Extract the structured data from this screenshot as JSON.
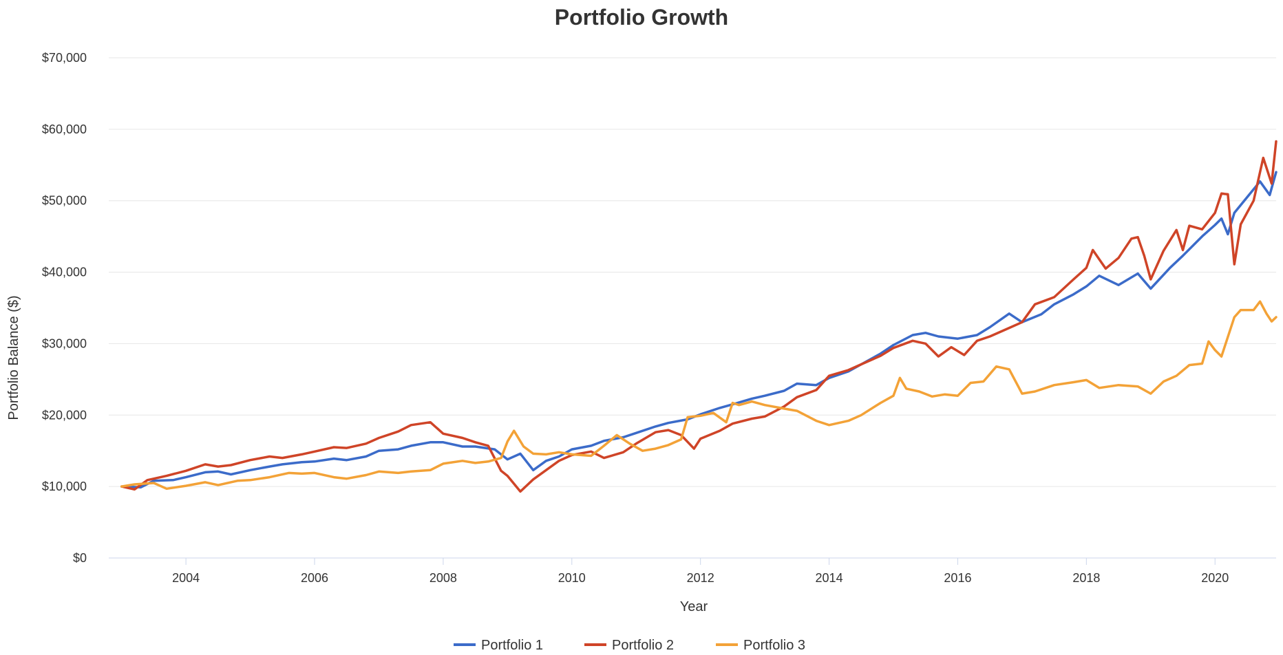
{
  "chart_data": {
    "type": "line",
    "title": "Portfolio Growth",
    "xlabel": "Year",
    "ylabel": "Portfolio Balance ($)",
    "xlim": [
      2002.8,
      2020.95
    ],
    "ylim": [
      0,
      70000
    ],
    "x_ticks": [
      2004,
      2006,
      2008,
      2010,
      2012,
      2014,
      2016,
      2018,
      2020
    ],
    "x_tick_labels": [
      "2004",
      "2006",
      "2008",
      "2010",
      "2012",
      "2014",
      "2016",
      "2018",
      "2020"
    ],
    "y_ticks": [
      0,
      10000,
      20000,
      30000,
      40000,
      50000,
      60000,
      70000
    ],
    "y_tick_labels": [
      "$0",
      "$10,000",
      "$20,000",
      "$30,000",
      "$40,000",
      "$50,000",
      "$60,000",
      "$70,000"
    ],
    "grid": true,
    "legend_position": "bottom-center",
    "series": [
      {
        "name": "Portfolio 1",
        "color": "#3b6bc9",
        "points": [
          [
            2003.0,
            10000
          ],
          [
            2003.3,
            9900
          ],
          [
            2003.5,
            10800
          ],
          [
            2003.8,
            10900
          ],
          [
            2004.0,
            11300
          ],
          [
            2004.3,
            12000
          ],
          [
            2004.5,
            12100
          ],
          [
            2004.7,
            11700
          ],
          [
            2005.0,
            12300
          ],
          [
            2005.3,
            12800
          ],
          [
            2005.5,
            13100
          ],
          [
            2005.8,
            13400
          ],
          [
            2006.0,
            13500
          ],
          [
            2006.3,
            13900
          ],
          [
            2006.5,
            13700
          ],
          [
            2006.8,
            14200
          ],
          [
            2007.0,
            15000
          ],
          [
            2007.3,
            15200
          ],
          [
            2007.5,
            15700
          ],
          [
            2007.8,
            16200
          ],
          [
            2008.0,
            16200
          ],
          [
            2008.3,
            15600
          ],
          [
            2008.5,
            15600
          ],
          [
            2008.8,
            15200
          ],
          [
            2009.0,
            13800
          ],
          [
            2009.2,
            14600
          ],
          [
            2009.4,
            12300
          ],
          [
            2009.6,
            13600
          ],
          [
            2009.8,
            14200
          ],
          [
            2010.0,
            15200
          ],
          [
            2010.3,
            15700
          ],
          [
            2010.5,
            16400
          ],
          [
            2010.8,
            16900
          ],
          [
            2011.0,
            17500
          ],
          [
            2011.3,
            18400
          ],
          [
            2011.5,
            18900
          ],
          [
            2011.8,
            19400
          ],
          [
            2012.0,
            20100
          ],
          [
            2012.3,
            21000
          ],
          [
            2012.5,
            21500
          ],
          [
            2012.8,
            22300
          ],
          [
            2013.0,
            22700
          ],
          [
            2013.3,
            23400
          ],
          [
            2013.5,
            24400
          ],
          [
            2013.8,
            24200
          ],
          [
            2014.0,
            25200
          ],
          [
            2014.3,
            26100
          ],
          [
            2014.5,
            27100
          ],
          [
            2014.8,
            28600
          ],
          [
            2015.0,
            29800
          ],
          [
            2015.3,
            31200
          ],
          [
            2015.5,
            31500
          ],
          [
            2015.7,
            31000
          ],
          [
            2016.0,
            30700
          ],
          [
            2016.3,
            31200
          ],
          [
            2016.5,
            32300
          ],
          [
            2016.8,
            34200
          ],
          [
            2017.0,
            33000
          ],
          [
            2017.3,
            34100
          ],
          [
            2017.5,
            35500
          ],
          [
            2017.8,
            36900
          ],
          [
            2018.0,
            38000
          ],
          [
            2018.2,
            39500
          ],
          [
            2018.5,
            38200
          ],
          [
            2018.8,
            39800
          ],
          [
            2019.0,
            37700
          ],
          [
            2019.3,
            40600
          ],
          [
            2019.5,
            42300
          ],
          [
            2019.8,
            45000
          ],
          [
            2020.0,
            46600
          ],
          [
            2020.1,
            47500
          ],
          [
            2020.2,
            45300
          ],
          [
            2020.3,
            48300
          ],
          [
            2020.5,
            50500
          ],
          [
            2020.7,
            52700
          ],
          [
            2020.85,
            50800
          ],
          [
            2020.95,
            54000
          ]
        ]
      },
      {
        "name": "Portfolio 2",
        "color": "#cf4427",
        "points": [
          [
            2003.0,
            10000
          ],
          [
            2003.2,
            9600
          ],
          [
            2003.4,
            10900
          ],
          [
            2003.7,
            11500
          ],
          [
            2004.0,
            12200
          ],
          [
            2004.3,
            13100
          ],
          [
            2004.5,
            12800
          ],
          [
            2004.7,
            13000
          ],
          [
            2005.0,
            13700
          ],
          [
            2005.3,
            14200
          ],
          [
            2005.5,
            14000
          ],
          [
            2005.8,
            14500
          ],
          [
            2006.0,
            14900
          ],
          [
            2006.3,
            15500
          ],
          [
            2006.5,
            15400
          ],
          [
            2006.8,
            16000
          ],
          [
            2007.0,
            16800
          ],
          [
            2007.3,
            17700
          ],
          [
            2007.5,
            18600
          ],
          [
            2007.8,
            19000
          ],
          [
            2008.0,
            17400
          ],
          [
            2008.3,
            16800
          ],
          [
            2008.5,
            16200
          ],
          [
            2008.7,
            15700
          ],
          [
            2008.9,
            12200
          ],
          [
            2009.0,
            11500
          ],
          [
            2009.2,
            9300
          ],
          [
            2009.4,
            11000
          ],
          [
            2009.6,
            12300
          ],
          [
            2009.8,
            13600
          ],
          [
            2010.0,
            14400
          ],
          [
            2010.3,
            14900
          ],
          [
            2010.5,
            14000
          ],
          [
            2010.8,
            14800
          ],
          [
            2011.0,
            16000
          ],
          [
            2011.3,
            17600
          ],
          [
            2011.5,
            17900
          ],
          [
            2011.7,
            17200
          ],
          [
            2011.9,
            15300
          ],
          [
            2012.0,
            16700
          ],
          [
            2012.3,
            17800
          ],
          [
            2012.5,
            18800
          ],
          [
            2012.8,
            19500
          ],
          [
            2013.0,
            19800
          ],
          [
            2013.3,
            21200
          ],
          [
            2013.5,
            22500
          ],
          [
            2013.8,
            23500
          ],
          [
            2014.0,
            25500
          ],
          [
            2014.3,
            26300
          ],
          [
            2014.5,
            27100
          ],
          [
            2014.8,
            28300
          ],
          [
            2015.0,
            29400
          ],
          [
            2015.3,
            30400
          ],
          [
            2015.5,
            30000
          ],
          [
            2015.7,
            28200
          ],
          [
            2015.9,
            29500
          ],
          [
            2016.1,
            28400
          ],
          [
            2016.3,
            30400
          ],
          [
            2016.5,
            31000
          ],
          [
            2016.8,
            32200
          ],
          [
            2017.0,
            33000
          ],
          [
            2017.2,
            35500
          ],
          [
            2017.5,
            36500
          ],
          [
            2017.8,
            39000
          ],
          [
            2018.0,
            40600
          ],
          [
            2018.1,
            43100
          ],
          [
            2018.3,
            40500
          ],
          [
            2018.5,
            42000
          ],
          [
            2018.7,
            44700
          ],
          [
            2018.8,
            44900
          ],
          [
            2018.9,
            42300
          ],
          [
            2019.0,
            39000
          ],
          [
            2019.2,
            43000
          ],
          [
            2019.4,
            45900
          ],
          [
            2019.5,
            43100
          ],
          [
            2019.6,
            46500
          ],
          [
            2019.8,
            46000
          ],
          [
            2020.0,
            48300
          ],
          [
            2020.1,
            51000
          ],
          [
            2020.2,
            50900
          ],
          [
            2020.3,
            41100
          ],
          [
            2020.4,
            46700
          ],
          [
            2020.6,
            50000
          ],
          [
            2020.75,
            56000
          ],
          [
            2020.88,
            52400
          ],
          [
            2020.95,
            58300
          ]
        ]
      },
      {
        "name": "Portfolio 3",
        "color": "#f3a237",
        "points": [
          [
            2003.0,
            10000
          ],
          [
            2003.2,
            10300
          ],
          [
            2003.5,
            10500
          ],
          [
            2003.7,
            9700
          ],
          [
            2004.0,
            10100
          ],
          [
            2004.3,
            10600
          ],
          [
            2004.5,
            10200
          ],
          [
            2004.8,
            10800
          ],
          [
            2005.0,
            10900
          ],
          [
            2005.3,
            11300
          ],
          [
            2005.6,
            11900
          ],
          [
            2005.8,
            11800
          ],
          [
            2006.0,
            11900
          ],
          [
            2006.3,
            11300
          ],
          [
            2006.5,
            11100
          ],
          [
            2006.8,
            11600
          ],
          [
            2007.0,
            12100
          ],
          [
            2007.3,
            11900
          ],
          [
            2007.5,
            12100
          ],
          [
            2007.8,
            12300
          ],
          [
            2008.0,
            13200
          ],
          [
            2008.3,
            13600
          ],
          [
            2008.5,
            13300
          ],
          [
            2008.7,
            13500
          ],
          [
            2008.9,
            14000
          ],
          [
            2009.0,
            16300
          ],
          [
            2009.1,
            17800
          ],
          [
            2009.25,
            15600
          ],
          [
            2009.4,
            14600
          ],
          [
            2009.6,
            14500
          ],
          [
            2009.8,
            14800
          ],
          [
            2010.0,
            14500
          ],
          [
            2010.3,
            14300
          ],
          [
            2010.5,
            15700
          ],
          [
            2010.7,
            17200
          ],
          [
            2010.9,
            16000
          ],
          [
            2011.1,
            15000
          ],
          [
            2011.3,
            15300
          ],
          [
            2011.5,
            15800
          ],
          [
            2011.7,
            16600
          ],
          [
            2011.8,
            19700
          ],
          [
            2012.0,
            19900
          ],
          [
            2012.2,
            20300
          ],
          [
            2012.4,
            19000
          ],
          [
            2012.5,
            21700
          ],
          [
            2012.6,
            21400
          ],
          [
            2012.8,
            21900
          ],
          [
            2013.0,
            21400
          ],
          [
            2013.3,
            20900
          ],
          [
            2013.5,
            20600
          ],
          [
            2013.8,
            19200
          ],
          [
            2014.0,
            18600
          ],
          [
            2014.3,
            19200
          ],
          [
            2014.5,
            20000
          ],
          [
            2014.8,
            21700
          ],
          [
            2015.0,
            22700
          ],
          [
            2015.1,
            25200
          ],
          [
            2015.2,
            23700
          ],
          [
            2015.4,
            23300
          ],
          [
            2015.6,
            22600
          ],
          [
            2015.8,
            22900
          ],
          [
            2016.0,
            22700
          ],
          [
            2016.2,
            24500
          ],
          [
            2016.4,
            24700
          ],
          [
            2016.6,
            26800
          ],
          [
            2016.8,
            26400
          ],
          [
            2017.0,
            23000
          ],
          [
            2017.2,
            23300
          ],
          [
            2017.5,
            24200
          ],
          [
            2017.8,
            24600
          ],
          [
            2018.0,
            24900
          ],
          [
            2018.2,
            23800
          ],
          [
            2018.5,
            24200
          ],
          [
            2018.8,
            24000
          ],
          [
            2019.0,
            23000
          ],
          [
            2019.2,
            24700
          ],
          [
            2019.4,
            25500
          ],
          [
            2019.6,
            27000
          ],
          [
            2019.8,
            27200
          ],
          [
            2019.9,
            30300
          ],
          [
            2020.0,
            29100
          ],
          [
            2020.1,
            28200
          ],
          [
            2020.3,
            33700
          ],
          [
            2020.4,
            34700
          ],
          [
            2020.6,
            34700
          ],
          [
            2020.7,
            35900
          ],
          [
            2020.8,
            34200
          ],
          [
            2020.88,
            33100
          ],
          [
            2020.95,
            33700
          ]
        ]
      }
    ]
  }
}
